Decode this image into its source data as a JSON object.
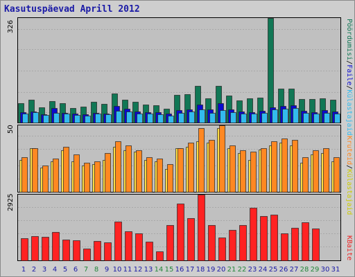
{
  "title": "Kasutuspäevad Aprill 2012",
  "colors": {
    "visits": "#117755",
    "pages": "#0a0ad0",
    "hits": "#33bbee",
    "files": "#ffdd44",
    "bandwidth_kb": "#ff8822",
    "traffic": "#ff2222",
    "weekend_day_label": "#22883a",
    "weekday_label": "#1a1aa6"
  },
  "right_labels": {
    "top": {
      "visits": "Pöördumisi",
      "sep1": "/",
      "pages": "Faile",
      "sep2": "/",
      "hits": "Külastajaid"
    },
    "middle": {
      "bandwidth_kb": "Kruteid",
      "sep": "/",
      "files": "Külastajaid"
    },
    "bottom": {
      "traffic": "KBaite"
    }
  },
  "chart_data": [
    {
      "type": "bar",
      "panel": "top",
      "ytick": "326",
      "ylim": [
        0,
        326
      ],
      "categories": [
        "1",
        "2",
        "3",
        "4",
        "5",
        "6",
        "7",
        "8",
        "9",
        "10",
        "11",
        "12",
        "13",
        "14",
        "15",
        "16",
        "17",
        "18",
        "19",
        "20",
        "21",
        "22",
        "23",
        "24",
        "25",
        "26",
        "27",
        "28",
        "29",
        "30",
        "31"
      ],
      "weekend": [
        false,
        false,
        false,
        false,
        false,
        false,
        true,
        true,
        false,
        false,
        false,
        false,
        false,
        true,
        true,
        false,
        false,
        false,
        false,
        false,
        true,
        true,
        false,
        false,
        false,
        false,
        false,
        true,
        true,
        false,
        false
      ],
      "series": [
        {
          "name": "Pöördumisi",
          "values": [
            61,
            72,
            47,
            67,
            60,
            45,
            50,
            64,
            58,
            91,
            72,
            65,
            57,
            53,
            43,
            86,
            88,
            114,
            75,
            115,
            84,
            69,
            76,
            77,
            326,
            105,
            106,
            73,
            74,
            75,
            72
          ]
        },
        {
          "name": "Faile",
          "values": [
            32,
            34,
            25,
            45,
            31,
            27,
            25,
            31,
            27,
            52,
            43,
            35,
            33,
            32,
            29,
            38,
            42,
            57,
            42,
            61,
            40,
            34,
            33,
            36,
            48,
            51,
            53,
            36,
            33,
            38,
            34
          ]
        },
        {
          "name": "Külastajaid",
          "values": [
            28,
            32,
            23,
            31,
            28,
            24,
            21,
            27,
            25,
            37,
            34,
            29,
            28,
            26,
            22,
            31,
            35,
            40,
            31,
            38,
            32,
            27,
            27,
            30,
            42,
            43,
            45,
            30,
            28,
            31,
            28
          ]
        }
      ]
    },
    {
      "type": "bar",
      "panel": "middle",
      "ytick": "50",
      "ylim": [
        0,
        50
      ],
      "categories": [
        "1",
        "2",
        "3",
        "4",
        "5",
        "6",
        "7",
        "8",
        "9",
        "10",
        "11",
        "12",
        "13",
        "14",
        "15",
        "16",
        "17",
        "18",
        "19",
        "20",
        "21",
        "22",
        "23",
        "24",
        "25",
        "26",
        "27",
        "28",
        "29",
        "30",
        "31"
      ],
      "series": [
        {
          "name": "Külastajaid",
          "values": [
            24,
            33,
            18,
            23,
            31,
            23,
            20,
            21,
            24,
            34,
            31,
            30,
            24,
            23,
            17,
            33,
            34,
            38,
            37,
            48,
            33,
            29,
            24,
            32,
            35,
            37,
            35,
            22,
            28,
            29,
            23
          ]
        },
        {
          "name": "Kruteid",
          "values": [
            26,
            33,
            20,
            25,
            34,
            28,
            22,
            23,
            29,
            38,
            35,
            31,
            26,
            25,
            21,
            33,
            37,
            48,
            39,
            50,
            35,
            31,
            30,
            33,
            38,
            40,
            39,
            26,
            31,
            33,
            26
          ]
        }
      ]
    },
    {
      "type": "bar",
      "panel": "bottom",
      "ytick": "2925",
      "ylim": [
        0,
        2925
      ],
      "categories": [
        "1",
        "2",
        "3",
        "4",
        "5",
        "6",
        "7",
        "8",
        "9",
        "10",
        "11",
        "12",
        "13",
        "14",
        "15",
        "16",
        "17",
        "18",
        "19",
        "20",
        "21",
        "22",
        "23",
        "24",
        "25",
        "26",
        "27",
        "28",
        "29",
        "30",
        "31"
      ],
      "series": [
        {
          "name": "KBaite",
          "values": [
            998,
            1063,
            1041,
            1253,
            912,
            906,
            531,
            867,
            789,
            1718,
            1298,
            1209,
            835,
            409,
            1582,
            2537,
            1884,
            2925,
            1582,
            1011,
            1350,
            1582,
            2338,
            1972,
            2030,
            1209,
            1448,
            1686,
            1424,
            0,
            0
          ]
        }
      ]
    }
  ]
}
